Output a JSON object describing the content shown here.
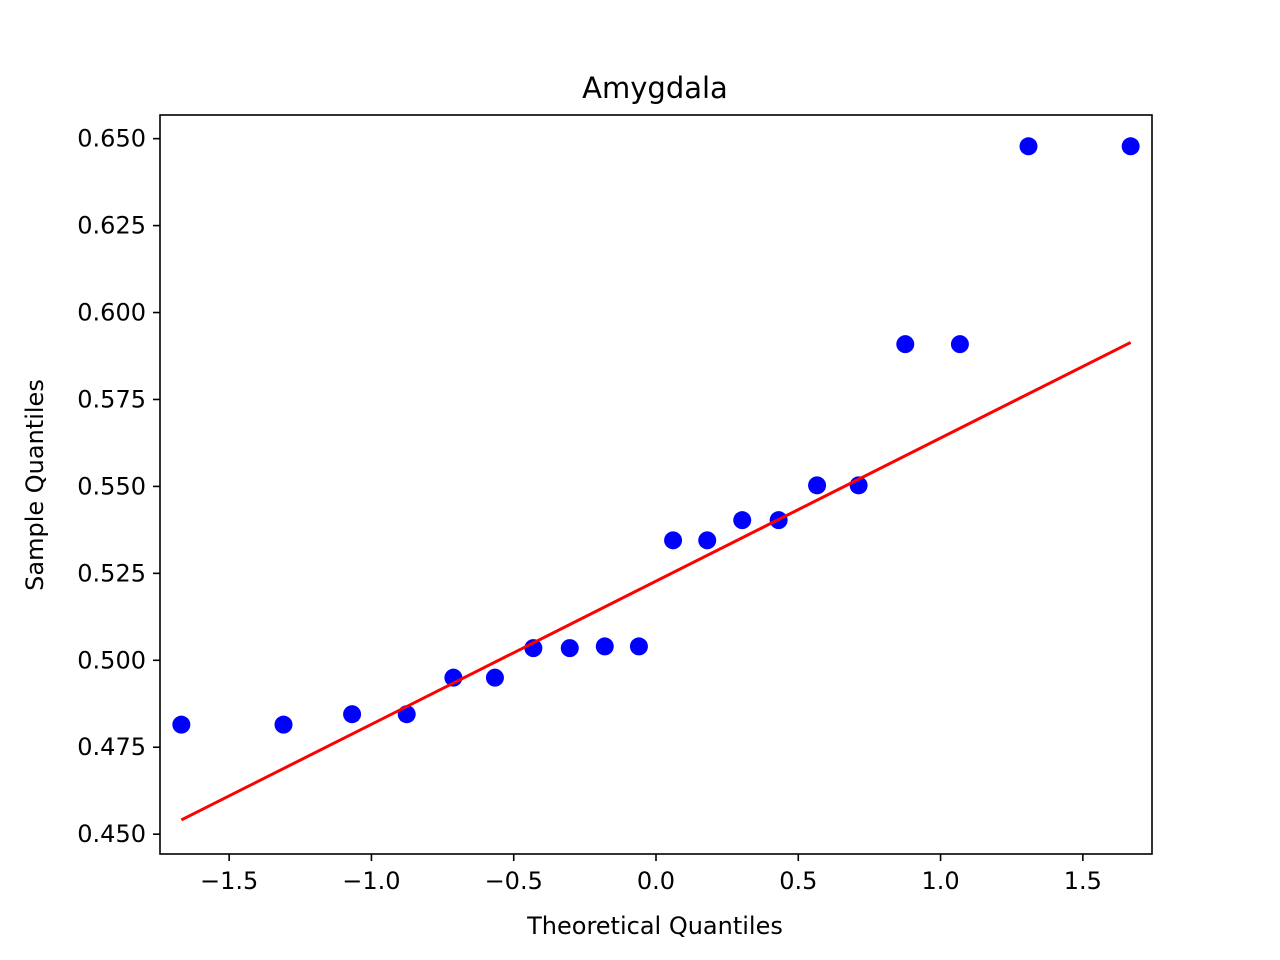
{
  "chart_data": {
    "type": "scatter",
    "title": "Amygdala",
    "xlabel": "Theoretical Quantiles",
    "ylabel": "Sample Quantiles",
    "xlim": [
      -1.743,
      1.743
    ],
    "ylim": [
      0.4443,
      0.6568
    ],
    "xticks": [
      -1.5,
      -1.0,
      -0.5,
      0.0,
      0.5,
      1.0,
      1.5
    ],
    "xtick_labels": [
      "−1.5",
      "−1.0",
      "−0.5",
      "0.0",
      "0.5",
      "1.0",
      "1.5"
    ],
    "yticks": [
      0.45,
      0.475,
      0.5,
      0.525,
      0.55,
      0.575,
      0.6,
      0.625,
      0.65
    ],
    "ytick_labels": [
      "0.450",
      "0.475",
      "0.500",
      "0.525",
      "0.550",
      "0.575",
      "0.600",
      "0.625",
      "0.650"
    ],
    "grid": false,
    "series": [
      {
        "type": "scatter",
        "color": "#0000ff",
        "x": [
          -1.668,
          -1.309,
          -1.068,
          -0.876,
          -0.712,
          -0.566,
          -0.431,
          -0.303,
          -0.18,
          -0.06,
          0.06,
          0.18,
          0.303,
          0.431,
          0.566,
          0.712,
          0.876,
          1.068,
          1.309,
          1.668
        ],
        "y": [
          0.4815,
          0.4815,
          0.4845,
          0.4845,
          0.495,
          0.495,
          0.5035,
          0.5035,
          0.504,
          0.504,
          0.5345,
          0.5345,
          0.5403,
          0.5403,
          0.5503,
          0.5503,
          0.5909,
          0.5909,
          0.6478,
          0.6478
        ]
      },
      {
        "type": "line",
        "color": "#ff0000",
        "x": [
          -1.668,
          1.668
        ],
        "y": [
          0.4541,
          0.5914
        ]
      }
    ]
  }
}
